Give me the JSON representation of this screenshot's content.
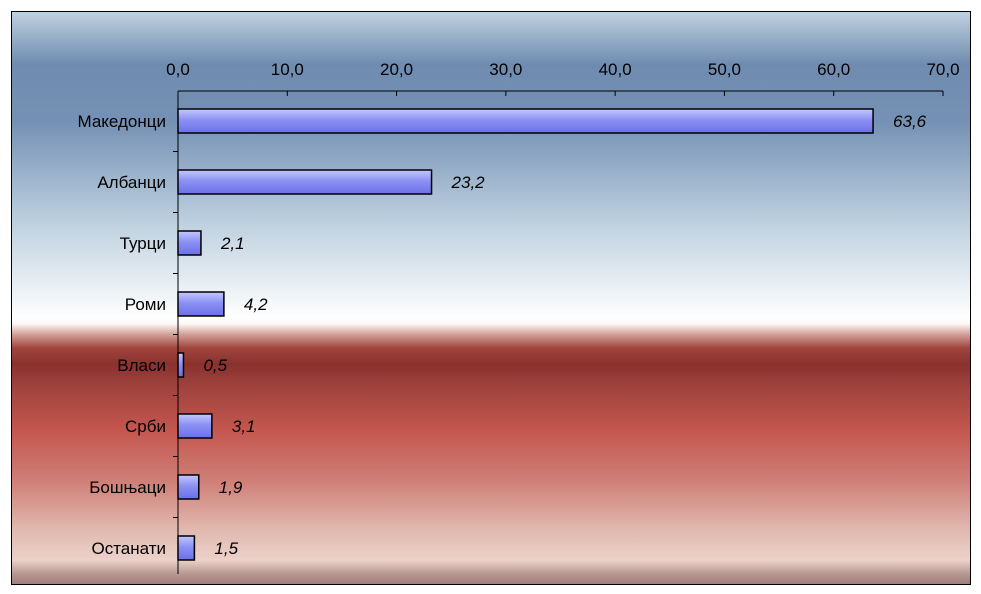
{
  "chart_data": {
    "type": "bar",
    "orientation": "horizontal",
    "categories": [
      "Македонци",
      "Албанци",
      "Турци",
      "Роми",
      "Власи",
      "Срби",
      "Бошњаци",
      "Останати"
    ],
    "values": [
      63.6,
      23.2,
      2.1,
      4.2,
      0.5,
      3.1,
      1.9,
      1.5
    ],
    "data_labels": [
      "63,6",
      "23,2",
      "2,1",
      "4,2",
      "0,5",
      "3,1",
      "1,9",
      "1,5"
    ],
    "x_ticks": [
      0,
      10,
      20,
      30,
      40,
      50,
      60,
      70
    ],
    "x_tick_labels": [
      "0,0",
      "10,0",
      "20,0",
      "30,0",
      "40,0",
      "50,0",
      "60,0",
      "70,0"
    ],
    "xlim": [
      0,
      70
    ],
    "x_axis_position": "top",
    "grid": false,
    "legend": "none",
    "colors": {
      "bar_fill_light": "#b3b8ff",
      "bar_fill_dark": "#6a70e8",
      "bar_stroke": "#000000"
    }
  }
}
